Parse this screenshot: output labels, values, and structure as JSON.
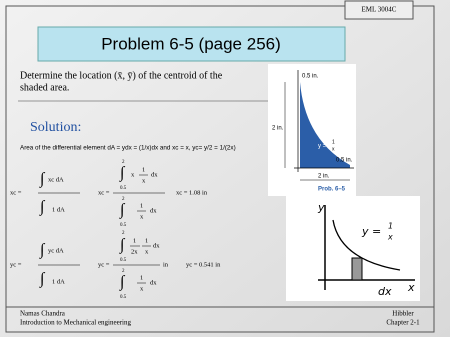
{
  "header": {
    "course": "EML 3004C",
    "title": "Problem 6-5 (page 256)"
  },
  "problem": {
    "lines": [
      "Determine the location (x̄, ȳ) of the centroid of the",
      "shaded area."
    ]
  },
  "solution": {
    "heading": "Solution:",
    "intro": "Area of the differential element dA = ydx = (1/x)dx and xc = x, yc= y/2 = 1/(2x)"
  },
  "xc_equation": {
    "tokens": [
      "xc =",
      "∫",
      "xc dA",
      "∫",
      "1 dA",
      "xc =",
      "2",
      "∫",
      "0.5",
      "x",
      "1",
      "x",
      "dx",
      "2",
      "∫",
      "0.5",
      "1",
      "x",
      "dx",
      "xc = 1.08 in"
    ]
  },
  "yc_equation": {
    "tokens": [
      "yc =",
      "∫",
      "yc dA",
      "∫",
      "1 dA",
      "yc =",
      "2",
      "∫",
      "0.5",
      "1",
      "2x",
      "1",
      "x",
      "dx",
      "2",
      "∫",
      "0.5",
      "1",
      "x",
      "dx",
      "in",
      "yc = 0.541 in"
    ]
  },
  "figure": {
    "labels": [
      "0.5 in.",
      "2 in.",
      "y =",
      "1",
      "x",
      "0.5 in.",
      "2 in.",
      "Prob. 6–5"
    ]
  },
  "sketch": {
    "labels": [
      "y",
      "y =",
      "1",
      "x",
      "dx",
      "x"
    ]
  },
  "footer": {
    "author": "Namas Chandra",
    "course_name": "Introduction to Mechanical engineering",
    "book": "Hibbler",
    "chapter": "Chapter 2-1"
  }
}
